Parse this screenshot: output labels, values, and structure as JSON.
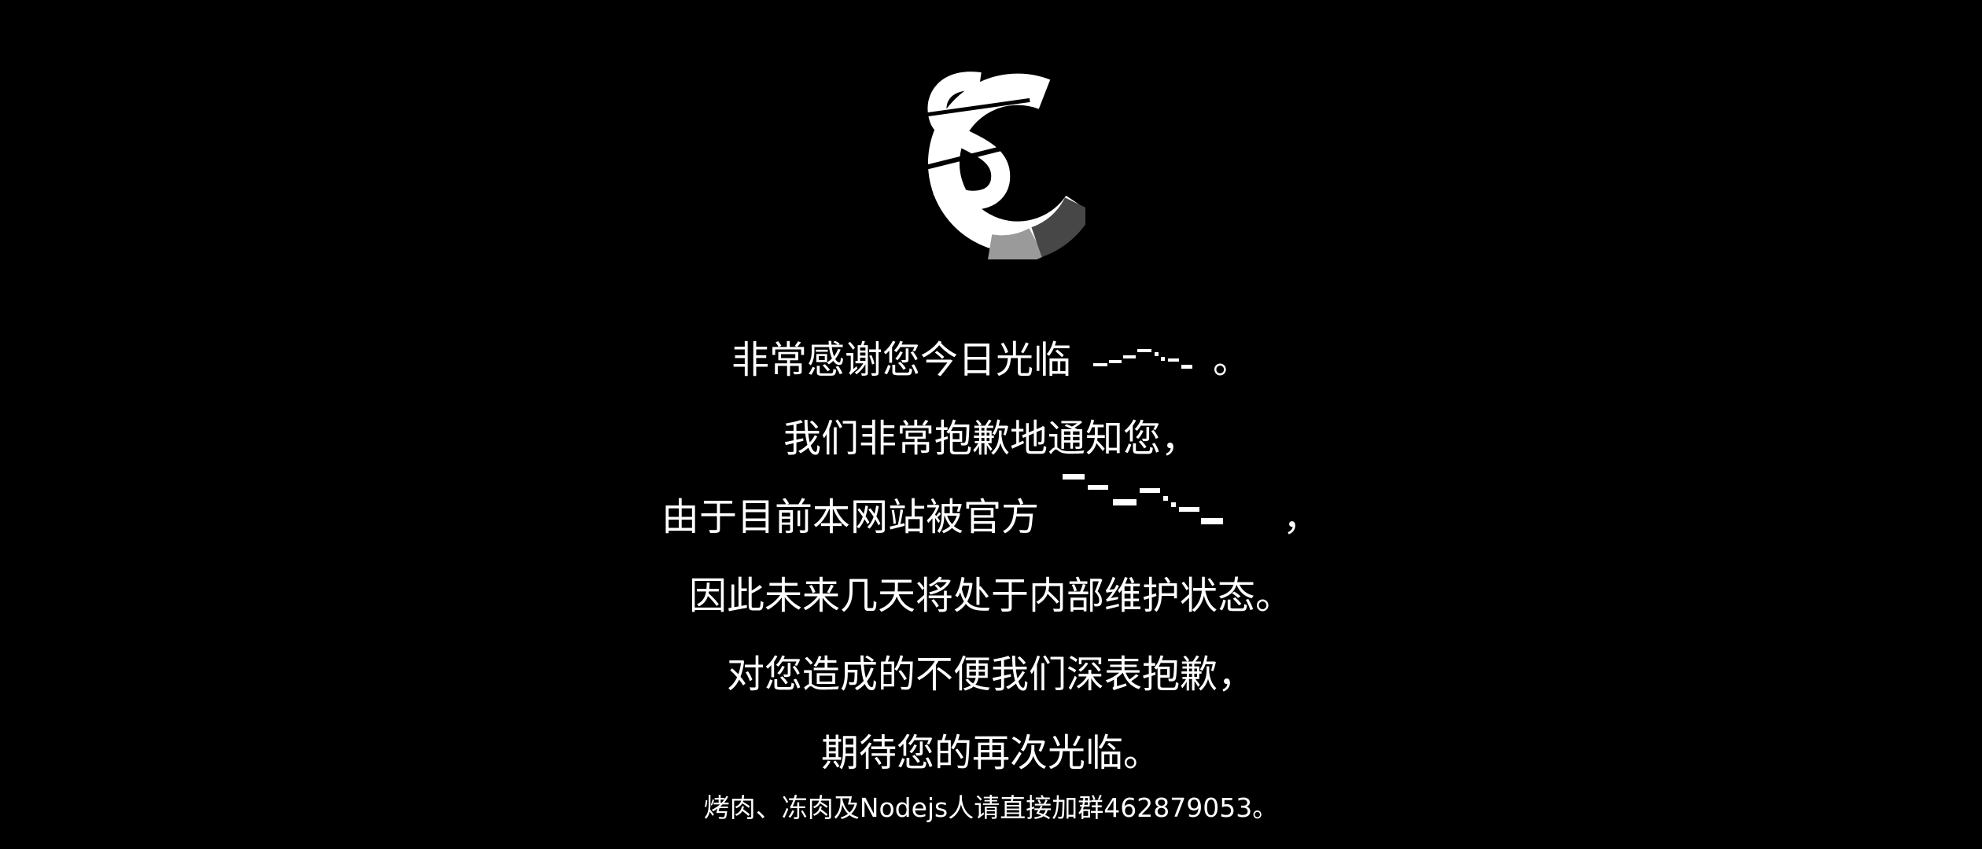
{
  "logo": {
    "icon": "sc-logo-icon"
  },
  "message": {
    "line1_text": "非常感谢您今日光临",
    "line1_end": "。",
    "line2": "我们非常抱歉地通知您，",
    "line3_text": "由于目前本网站被官方",
    "line3_end": "，",
    "line4": "因此未来几天将处于内部维护状态。",
    "line5": "对您造成的不便我们深表抱歉，",
    "line6": "期待您的再次光临。"
  },
  "footer": {
    "text": "烤肉、冻肉及Nodejs人请直接加群462879053。"
  },
  "colors": {
    "background": "#000000",
    "text": "#ffffff",
    "logo_grey": "#9a9a9a",
    "logo_dark": "#474747"
  }
}
